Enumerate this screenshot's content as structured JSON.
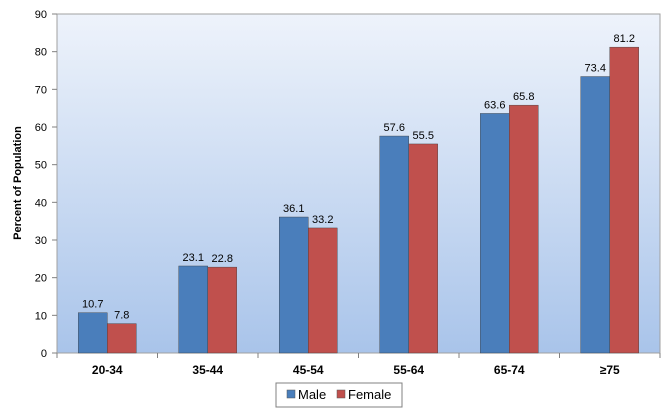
{
  "chart_data": {
    "type": "bar",
    "categories": [
      "20-34",
      "35-44",
      "45-54",
      "55-64",
      "65-74",
      "≥75"
    ],
    "series": [
      {
        "name": "Male",
        "color": "#4a7ebb",
        "values": [
          10.7,
          23.1,
          36.1,
          57.6,
          63.6,
          73.4
        ]
      },
      {
        "name": "Female",
        "color": "#c0504d",
        "values": [
          7.8,
          22.8,
          33.2,
          55.5,
          65.8,
          81.2
        ]
      }
    ],
    "data_labels": [
      [
        "10.7",
        "23.1",
        "36.1",
        "57.6",
        "63.6",
        "73.4"
      ],
      [
        "7.8",
        "22.8",
        "33.2",
        "55.5",
        "65.8",
        "81.2"
      ]
    ],
    "ylabel": "Percent of Population",
    "xlabel": "",
    "ylim": [
      0,
      90
    ],
    "yticks": [
      "0",
      "10",
      "20",
      "30",
      "40",
      "50",
      "60",
      "70",
      "80",
      "90"
    ],
    "grid": false,
    "legend_position": "bottom",
    "background_gradient": [
      "#eef3fb",
      "#a9c4ea"
    ]
  }
}
